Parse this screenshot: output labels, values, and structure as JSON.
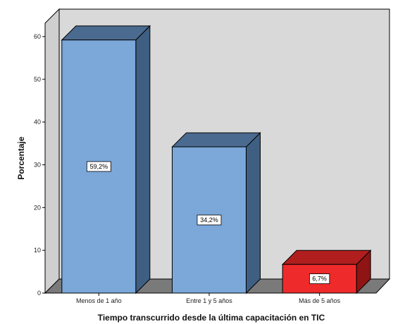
{
  "chart_data": {
    "type": "bar",
    "categories": [
      "Menos de 1 año",
      "Entre 1 y 5 años",
      "Más de 5 años"
    ],
    "values": [
      59.2,
      34.2,
      6.7
    ],
    "data_labels": [
      "59,2%",
      "34,2%",
      "6,7%"
    ],
    "yticks": [
      0,
      10,
      20,
      30,
      40,
      50,
      60
    ],
    "ytick_labels": [
      "0",
      "10",
      "20",
      "30",
      "40",
      "50",
      "60"
    ],
    "ylim": [
      0,
      65
    ],
    "xlabel": "Tiempo  transcurrido desde  la última capacitación en TIC",
    "ylabel": "Porcentaje",
    "grid": false,
    "style": "3d",
    "colors": {
      "bar": [
        "#7ba7d9",
        "#7ba7d9",
        "#ee2a2a"
      ],
      "bar_top": [
        "#4b6a8f",
        "#4b6a8f",
        "#b01e1e"
      ],
      "bar_side": [
        "#3f5f82",
        "#3f5f82",
        "#8f1414"
      ],
      "wall": "#d9d9d9",
      "floor": "#7a7a7a"
    }
  }
}
